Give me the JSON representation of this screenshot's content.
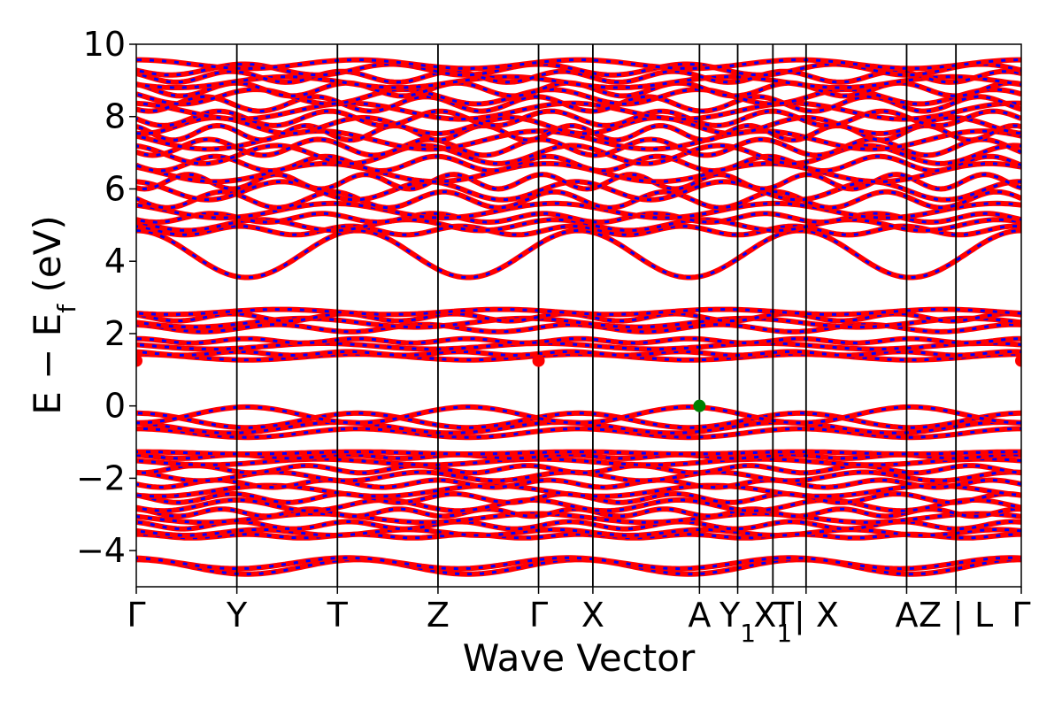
{
  "chart_data": {
    "type": "line",
    "title": "",
    "xlabel": "Wave Vector",
    "ylabel": "E − E_f (eV)",
    "ylabel_parts": {
      "main": "E  −  E",
      "sub": "f",
      "unit": " (eV)"
    },
    "ylim": [
      -5,
      10
    ],
    "yticks": [
      -4,
      -2,
      0,
      2,
      4,
      6,
      8,
      10
    ],
    "ytick_labels": [
      "−4",
      "−2",
      "0",
      "2",
      "4",
      "6",
      "8",
      "10"
    ],
    "grid": false,
    "kpoints": [
      {
        "x": 0.0,
        "label": "Γ"
      },
      {
        "x": 1.0,
        "label": "Y"
      },
      {
        "x": 2.0,
        "label": "T"
      },
      {
        "x": 3.0,
        "label": "Z"
      },
      {
        "x": 4.0,
        "label": "Γ"
      },
      {
        "x": 4.54,
        "label": "X"
      },
      {
        "x": 5.6,
        "label": "A"
      },
      {
        "x": 5.98,
        "label": "Y",
        "sub": "1"
      },
      {
        "x": 6.33,
        "label": "X",
        "sub": "1"
      },
      {
        "x": 6.66,
        "label": "T| X"
      },
      {
        "x": 7.66,
        "label": "A"
      },
      {
        "x": 8.15,
        "label": "Z | L"
      },
      {
        "x": 8.8,
        "label": "Γ"
      }
    ],
    "xlim": [
      0,
      8.8
    ],
    "band_colors": {
      "spin_up": "#ff0000",
      "spin_down": "#0000ff"
    },
    "markers": [
      {
        "name": "VBM",
        "x": 5.6,
        "y": 0.0,
        "color": "#008000"
      },
      {
        "name": "CBM",
        "x": 0.0,
        "y": 1.25,
        "color": "#ff0000"
      },
      {
        "name": "CBM",
        "x": 4.0,
        "y": 1.25,
        "color": "#ff0000"
      },
      {
        "name": "CBM",
        "x": 8.8,
        "y": 1.25,
        "color": "#ff0000"
      }
    ],
    "series": [
      {
        "base": -4.45,
        "amp": 0.2,
        "freq": 1.0,
        "phase": 0.0
      },
      {
        "base": -4.35,
        "amp": 0.15,
        "freq": 1.0,
        "phase": 0.3
      },
      {
        "base": -3.6,
        "amp": 0.05,
        "freq": 2.0,
        "phase": 0.0
      },
      {
        "base": -3.5,
        "amp": 0.08,
        "freq": 1.5,
        "phase": 1.0
      },
      {
        "base": -3.3,
        "amp": 0.1,
        "freq": 2.0,
        "phase": 0.5
      },
      {
        "base": -3.1,
        "amp": 0.12,
        "freq": 1.0,
        "phase": 1.2
      },
      {
        "base": -2.95,
        "amp": 0.1,
        "freq": 2.5,
        "phase": 0.2
      },
      {
        "base": -2.75,
        "amp": 0.15,
        "freq": 1.5,
        "phase": 2.0
      },
      {
        "base": -2.55,
        "amp": 0.12,
        "freq": 2.0,
        "phase": 0.8
      },
      {
        "base": -2.35,
        "amp": 0.15,
        "freq": 1.0,
        "phase": 2.5
      },
      {
        "base": -2.15,
        "amp": 0.1,
        "freq": 2.0,
        "phase": 1.7
      },
      {
        "base": -1.95,
        "amp": 0.12,
        "freq": 1.5,
        "phase": 0.4
      },
      {
        "base": -1.75,
        "amp": 0.1,
        "freq": 2.0,
        "phase": 2.9
      },
      {
        "base": -1.55,
        "amp": 0.08,
        "freq": 1.0,
        "phase": 1.1
      },
      {
        "base": -1.4,
        "amp": 0.05,
        "freq": 2.0,
        "phase": 0.6
      },
      {
        "base": -1.3,
        "amp": 0.03,
        "freq": 1.0,
        "phase": 0.0
      },
      {
        "base": -0.75,
        "amp": 0.12,
        "freq": 1.0,
        "phase": 0.0
      },
      {
        "base": -0.6,
        "amp": 0.15,
        "freq": 1.0,
        "phase": 0.5
      },
      {
        "base": -0.4,
        "amp": 0.2,
        "freq": 1.0,
        "phase": 0.0
      },
      {
        "base": -0.25,
        "amp": 0.22,
        "freq": 1.0,
        "phase": 3.14
      },
      {
        "base": 1.35,
        "amp": 0.08,
        "freq": 1.0,
        "phase": 0.0
      },
      {
        "base": 1.45,
        "amp": 0.05,
        "freq": 2.0,
        "phase": 0.5
      },
      {
        "base": 1.65,
        "amp": 0.08,
        "freq": 1.0,
        "phase": 1.0
      },
      {
        "base": 1.8,
        "amp": 0.06,
        "freq": 2.0,
        "phase": 0.0
      },
      {
        "base": 2.15,
        "amp": 0.1,
        "freq": 1.5,
        "phase": 0.3
      },
      {
        "base": 2.3,
        "amp": 0.12,
        "freq": 1.0,
        "phase": 1.5
      },
      {
        "base": 2.45,
        "amp": 0.1,
        "freq": 2.0,
        "phase": 0.8
      },
      {
        "base": 2.6,
        "amp": 0.07,
        "freq": 1.0,
        "phase": 2.2
      },
      {
        "base": 4.2,
        "amp": 0.65,
        "freq": 1.0,
        "phase": 0.0
      },
      {
        "base": 4.85,
        "amp": 0.12,
        "freq": 2.0,
        "phase": 0.4
      },
      {
        "base": 5.0,
        "amp": 0.15,
        "freq": 1.5,
        "phase": 1.0
      },
      {
        "base": 5.2,
        "amp": 0.12,
        "freq": 2.0,
        "phase": 2.0
      },
      {
        "base": 5.4,
        "amp": 0.2,
        "freq": 1.0,
        "phase": 0.7
      },
      {
        "base": 5.7,
        "amp": 0.22,
        "freq": 2.0,
        "phase": 1.4
      },
      {
        "base": 5.95,
        "amp": 0.25,
        "freq": 1.5,
        "phase": 0.1
      },
      {
        "base": 6.2,
        "amp": 0.2,
        "freq": 2.5,
        "phase": 2.6
      },
      {
        "base": 6.45,
        "amp": 0.25,
        "freq": 1.0,
        "phase": 0.9
      },
      {
        "base": 6.7,
        "amp": 0.2,
        "freq": 2.0,
        "phase": 1.8
      },
      {
        "base": 6.95,
        "amp": 0.25,
        "freq": 1.5,
        "phase": 0.3
      },
      {
        "base": 7.15,
        "amp": 0.22,
        "freq": 2.0,
        "phase": 2.2
      },
      {
        "base": 7.35,
        "amp": 0.25,
        "freq": 1.0,
        "phase": 1.1
      },
      {
        "base": 7.55,
        "amp": 0.2,
        "freq": 2.5,
        "phase": 0.5
      },
      {
        "base": 7.75,
        "amp": 0.22,
        "freq": 1.5,
        "phase": 2.9
      },
      {
        "base": 7.95,
        "amp": 0.2,
        "freq": 2.0,
        "phase": 1.6
      },
      {
        "base": 8.15,
        "amp": 0.22,
        "freq": 1.0,
        "phase": 0.2
      },
      {
        "base": 8.35,
        "amp": 0.2,
        "freq": 2.0,
        "phase": 2.4
      },
      {
        "base": 8.55,
        "amp": 0.2,
        "freq": 1.5,
        "phase": 1.2
      },
      {
        "base": 8.75,
        "amp": 0.18,
        "freq": 2.0,
        "phase": 0.6
      },
      {
        "base": 8.95,
        "amp": 0.15,
        "freq": 1.0,
        "phase": 2.0
      },
      {
        "base": 9.1,
        "amp": 0.15,
        "freq": 2.0,
        "phase": 0.9
      },
      {
        "base": 9.3,
        "amp": 0.15,
        "freq": 1.5,
        "phase": 1.7
      },
      {
        "base": 9.45,
        "amp": 0.12,
        "freq": 1.0,
        "phase": 0.0
      }
    ]
  }
}
